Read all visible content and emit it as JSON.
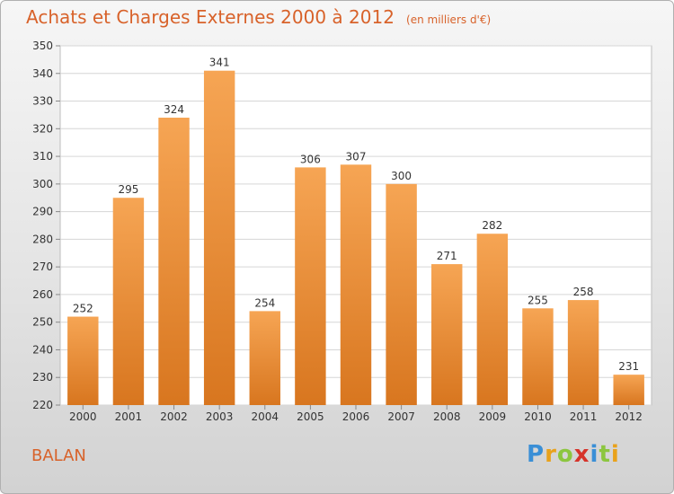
{
  "title": "Achats et Charges Externes 2000 à 2012",
  "subtitle": "(en milliers d'€)",
  "commune": "BALAN",
  "logo": {
    "letters": [
      {
        "ch": "P",
        "color": "#3a8fd6"
      },
      {
        "ch": "r",
        "color": "#e9a21b"
      },
      {
        "ch": "o",
        "color": "#8cc63f"
      },
      {
        "ch": "x",
        "color": "#d6332a"
      },
      {
        "ch": "i",
        "color": "#3a8fd6"
      },
      {
        "ch": "t",
        "color": "#8cc63f"
      },
      {
        "ch": "i",
        "color": "#e9a21b"
      }
    ]
  },
  "colors": {
    "bar_top": "#f6a554",
    "bar_bottom": "#d8761f",
    "text_accent": "#d8622a"
  },
  "chart_data": {
    "type": "bar",
    "categories": [
      "2000",
      "2001",
      "2002",
      "2003",
      "2004",
      "2005",
      "2006",
      "2007",
      "2008",
      "2009",
      "2010",
      "2011",
      "2012"
    ],
    "values": [
      252,
      295,
      324,
      341,
      254,
      306,
      307,
      300,
      271,
      282,
      255,
      258,
      231
    ],
    "ylim": [
      220,
      350
    ],
    "yticks": [
      220,
      230,
      240,
      250,
      260,
      270,
      280,
      290,
      300,
      310,
      320,
      330,
      340,
      350
    ],
    "grid": true,
    "legend": "none"
  }
}
